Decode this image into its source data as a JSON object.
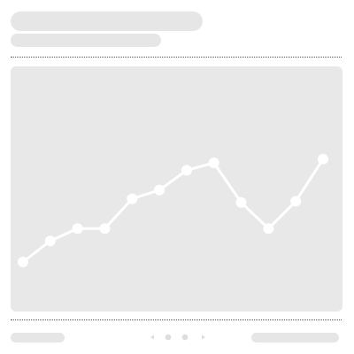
{
  "header": {
    "title_placeholder": "",
    "subtitle_placeholder": ""
  },
  "colors": {
    "skeleton": "#e6e6e6",
    "card": "#e8e8e8",
    "line": "#ffffff",
    "divider": "#555555"
  },
  "pager": {
    "prev_icon": "chevron-left-icon",
    "next_icon": "chevron-right-icon",
    "page_count": 2,
    "current_page": 1
  },
  "chart_data": {
    "type": "line",
    "title": "",
    "xlabel": "",
    "ylabel": "",
    "x": [
      1,
      2,
      3,
      4,
      5,
      6,
      7,
      8,
      9,
      10,
      11,
      12
    ],
    "series": [
      {
        "values": [
          20,
          37,
          47,
          47,
          71,
          78,
          94,
          100,
          68,
          47,
          69,
          103
        ]
      }
    ],
    "xlim": [
      1,
      12
    ],
    "ylim": [
      0,
      140
    ],
    "grid": false,
    "legend": "none"
  }
}
